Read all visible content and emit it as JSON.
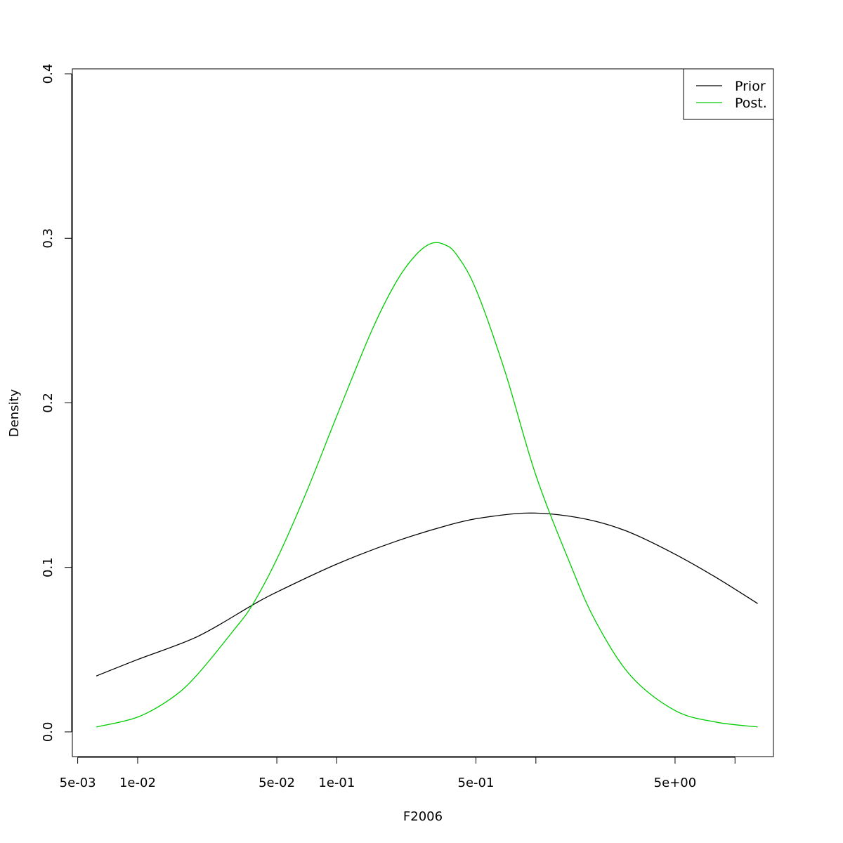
{
  "chart_data": {
    "type": "line",
    "title": "",
    "xlabel": "F2006",
    "ylabel": "Density",
    "x_scale": "log",
    "xlim": [
      0.0047,
      15.6
    ],
    "ylim": [
      -0.015,
      0.403
    ],
    "x_ticks": [
      {
        "value": 0.005,
        "label": "5e-03"
      },
      {
        "value": 0.01,
        "label": "1e-02"
      },
      {
        "value": 0.05,
        "label": "5e-02"
      },
      {
        "value": 0.1,
        "label": "1e-01"
      },
      {
        "value": 0.5,
        "label": "5e-01"
      },
      {
        "value": 1,
        "label": ""
      },
      {
        "value": 5,
        "label": "5e+00"
      },
      {
        "value": 10,
        "label": ""
      }
    ],
    "y_ticks": [
      {
        "value": 0.0,
        "label": "0.0"
      },
      {
        "value": 0.1,
        "label": "0.1"
      },
      {
        "value": 0.2,
        "label": "0.2"
      },
      {
        "value": 0.3,
        "label": "0.3"
      },
      {
        "value": 0.4,
        "label": "0.4"
      }
    ],
    "legend": {
      "position": "top-right",
      "items": [
        {
          "name": "Prior",
          "color": "#000000"
        },
        {
          "name": "Post.",
          "color": "#00cd00"
        }
      ]
    },
    "series": [
      {
        "name": "Prior",
        "color": "#000000",
        "x": [
          0.0062,
          0.01,
          0.02,
          0.0376,
          0.05,
          0.1,
          0.2,
          0.4,
          0.6,
          0.9,
          1.3,
          2.0,
          3.0,
          5.0,
          8.0,
          13.0
        ],
        "y": [
          0.034,
          0.044,
          0.058,
          0.077,
          0.085,
          0.102,
          0.116,
          0.127,
          0.131,
          0.133,
          0.132,
          0.128,
          0.121,
          0.108,
          0.094,
          0.078
        ]
      },
      {
        "name": "Post.",
        "color": "#00cd00",
        "x": [
          0.0062,
          0.01,
          0.015,
          0.02,
          0.03,
          0.0376,
          0.05,
          0.07,
          0.1,
          0.15,
          0.2,
          0.25,
          0.3,
          0.35,
          0.4,
          0.5,
          0.7,
          1.0,
          1.5,
          2.0,
          3.0,
          5.0,
          8.0,
          13.0
        ],
        "y": [
          0.003,
          0.009,
          0.021,
          0.035,
          0.061,
          0.077,
          0.105,
          0.145,
          0.192,
          0.244,
          0.274,
          0.29,
          0.297,
          0.296,
          0.29,
          0.269,
          0.219,
          0.156,
          0.101,
          0.067,
          0.034,
          0.013,
          0.006,
          0.003
        ]
      }
    ]
  }
}
